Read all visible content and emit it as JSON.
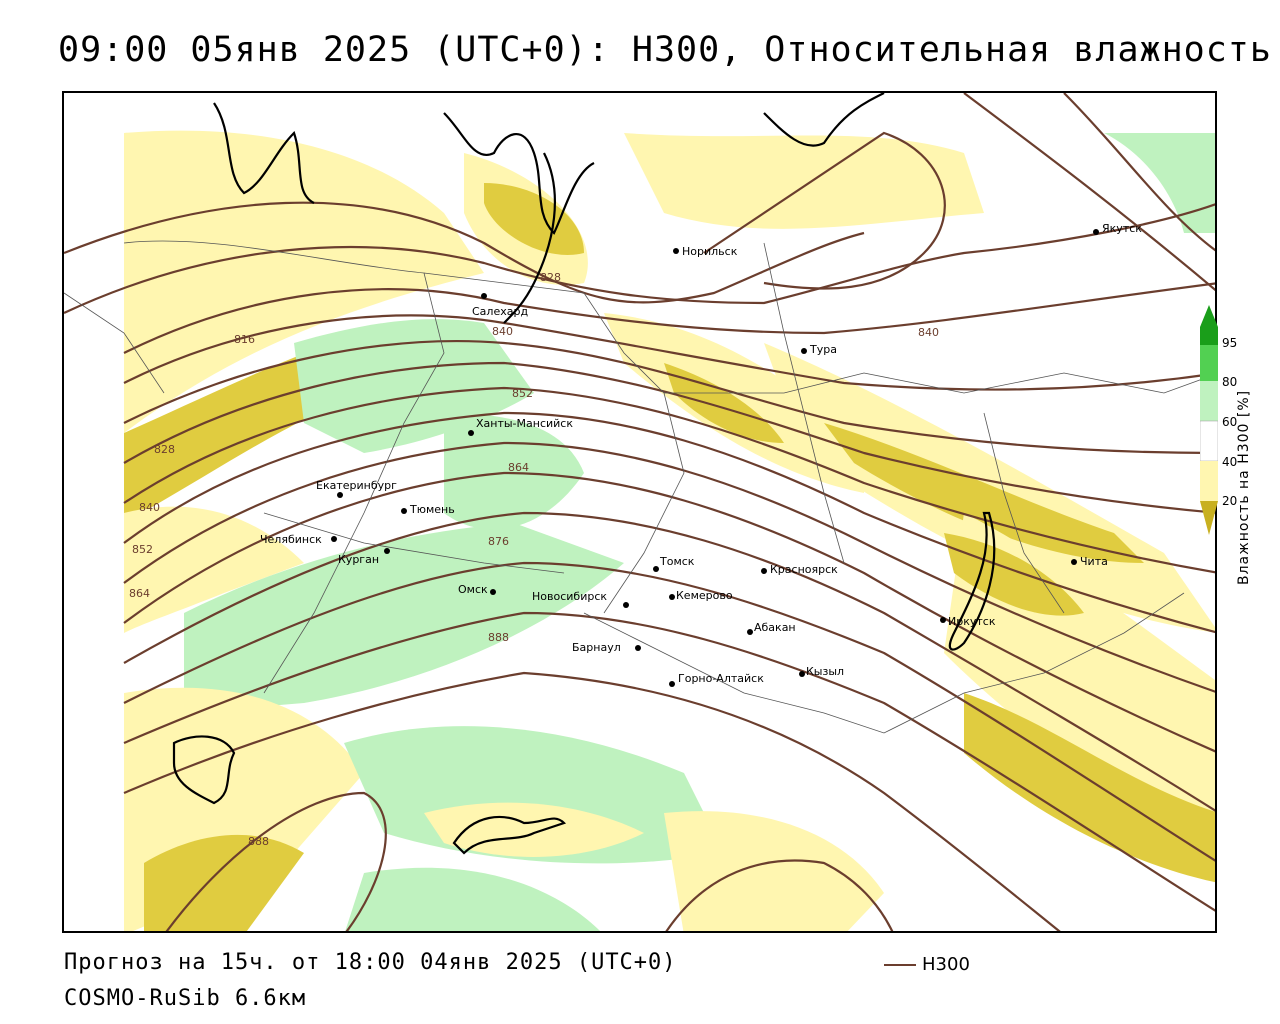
{
  "header": {
    "title": "09:00 05янв 2025 (UTC+0): H300, Относительная влажность"
  },
  "footer": {
    "forecast": "Прогноз на 15ч. от 18:00 04янв 2025 (UTC+0)",
    "model": "COSMO-RuSib 6.6км",
    "legend_label": "H300"
  },
  "colorbar": {
    "title": "Влажность на H300 [%]",
    "ticks": [
      "95",
      "80",
      "60",
      "40",
      "20"
    ],
    "colors": [
      "#1a9e1a",
      "#52d052",
      "#bff2bf",
      "#ffffff",
      "#fff6b0",
      "#e8d34a",
      "#c8b020"
    ]
  },
  "map": {
    "cities": [
      "Якутск",
      "Норильск",
      "Салехард",
      "Тура",
      "Ханты-Мансийск",
      "Екатеринбург",
      "Тюмень",
      "Челябинск",
      "Курган",
      "Омск",
      "Новосибирск",
      "Томск",
      "Красноярск",
      "Кемерово",
      "Абакан",
      "Барнаул",
      "Горно-Алтайск",
      "Кызыл",
      "Иркутск",
      "Чита"
    ],
    "isoline_labels": [
      "816",
      "828",
      "840",
      "852",
      "864",
      "876",
      "888",
      "828",
      "840",
      "852",
      "864",
      "840",
      "888"
    ],
    "colors": {
      "contour": "#6b3e2e",
      "humidity_low": "#fff6b0",
      "humidity_dry": "#e0cc40",
      "humidity_moist": "#bff2bf",
      "humidity_wet": "#52d052"
    }
  }
}
